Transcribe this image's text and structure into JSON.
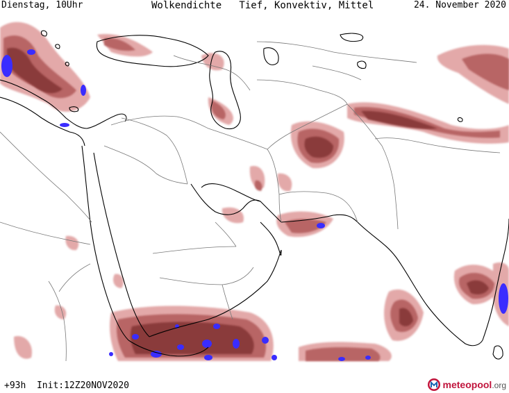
{
  "header": {
    "left": "Dienstag, 10Uhr",
    "title": "Wolkendichte   Tief, Konvektiv, Mittel",
    "right": "24. November 2020"
  },
  "footer": {
    "forecast": "+93h  Init:12Z20NOV2020",
    "brand_name": "meteopool",
    "brand_tld": ".org"
  },
  "colors": {
    "cloud_light": "#e3a9a9",
    "cloud_medium": "#b86565",
    "cloud_dense": "#8a3b3b",
    "cloud_max": "#3a2cff",
    "coast": "#000000",
    "border": "#777777",
    "brand": "#c0143c"
  },
  "icons": [
    "meteopool-logo-icon"
  ]
}
